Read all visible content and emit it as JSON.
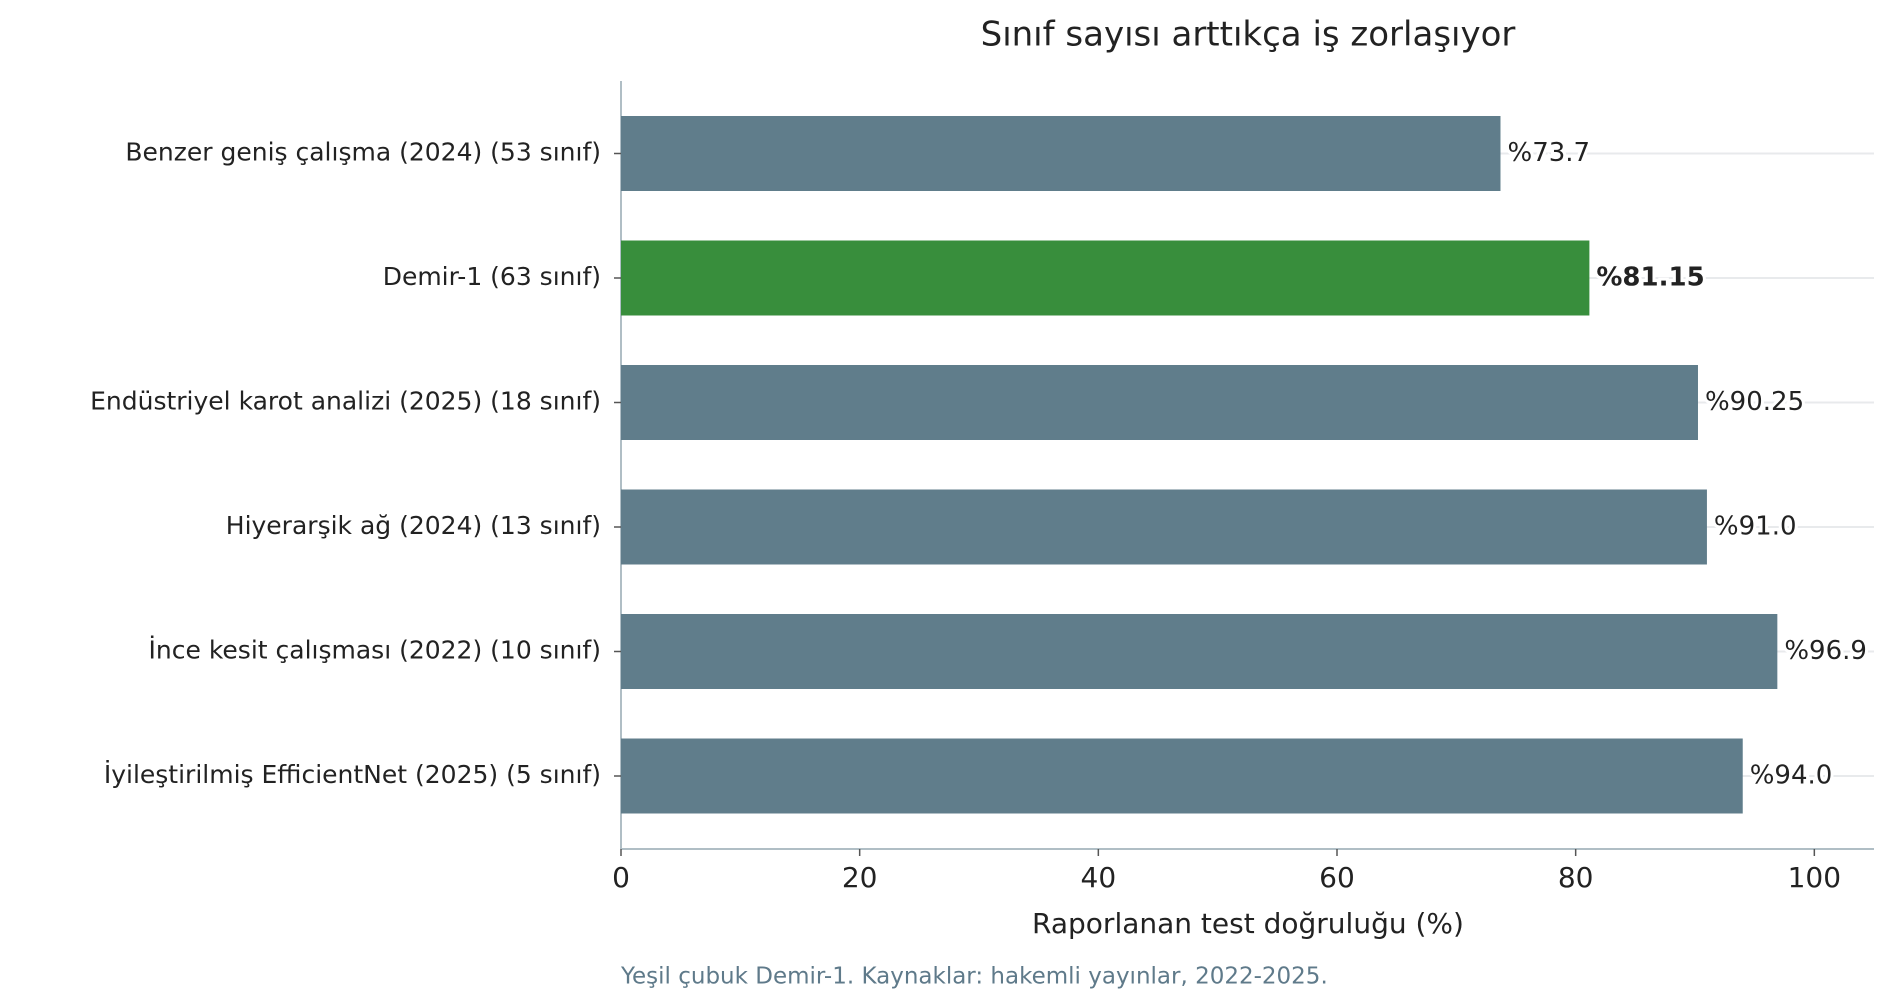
{
  "chart_data": {
    "type": "barh",
    "title": "Sınıf sayısı arttıkça iş zorlaşıyor",
    "x_label": "Raporlanan test doğruluğu (%)",
    "footnote": "Yeşil çubuk Demir-1. Kaynaklar: hakemli yayınlar, 2022-2025.",
    "categories": [
      "Benzer geniş çalışma (2024) (53 sınıf)",
      "Demir-1 (63 sınıf)",
      "Endüstriyel karot analizi (2025) (18 sınıf)",
      "Hiyerarşik ağ (2024) (13 sınıf)",
      "İnce kesit çalışması (2022) (10 sınıf)",
      "İyileştirilmiş EfficientNet (2025) (5 sınıf)"
    ],
    "values": [
      73.7,
      81.15,
      90.25,
      91.0,
      96.9,
      94.0
    ],
    "value_labels": [
      "%73.7",
      "%81.15",
      "%90.25",
      "%91.0",
      "%96.9",
      "%94.0"
    ],
    "colors": [
      "#607d8b",
      "#388e3c",
      "#607d8b",
      "#607d8b",
      "#607d8b",
      "#607d8b"
    ],
    "xlim": [
      0,
      105
    ],
    "xticks": [
      0,
      20,
      40,
      60,
      80,
      100
    ],
    "grid": true
  }
}
